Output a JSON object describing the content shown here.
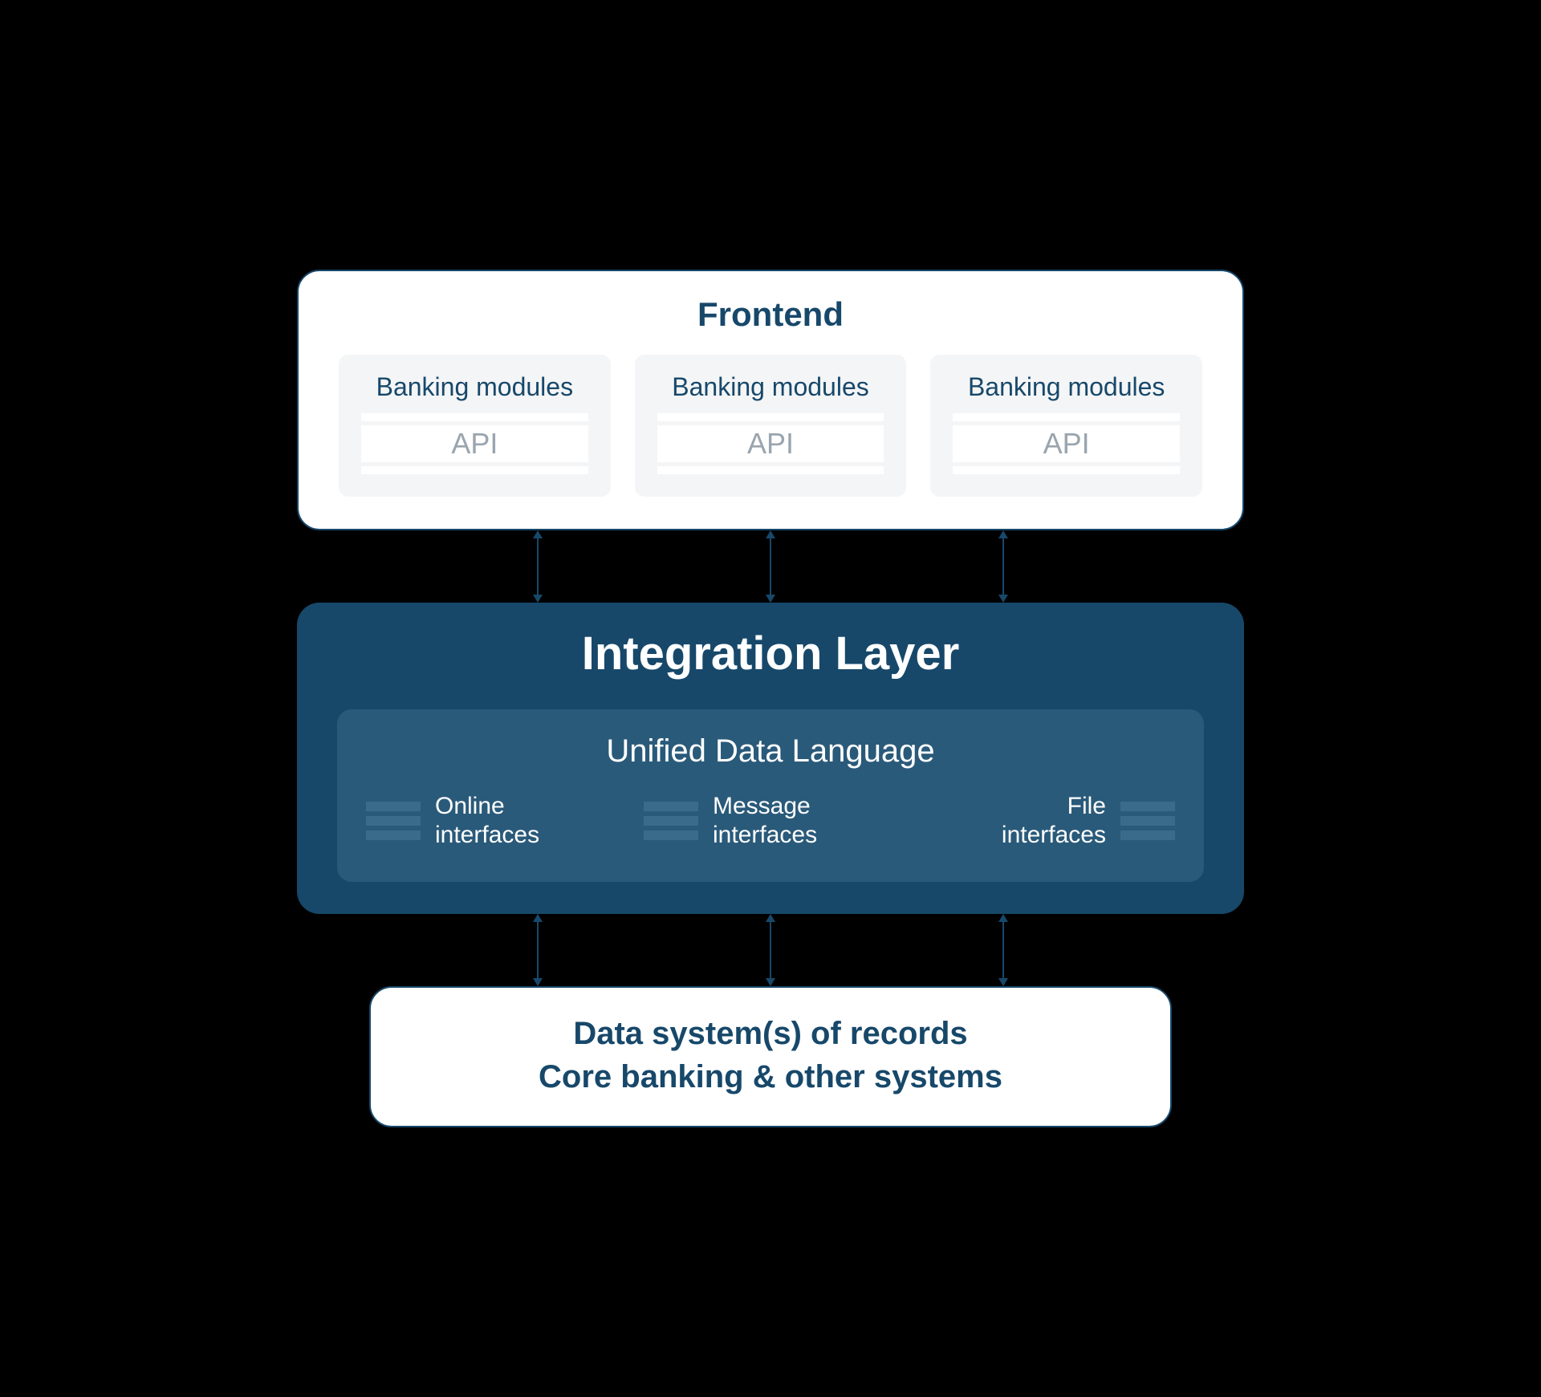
{
  "colors": {
    "page_bg": "#000000",
    "panel_white_bg": "#ffffff",
    "panel_border": "#17486a",
    "text_dark": "#17486a",
    "module_card_bg": "#f4f5f6",
    "api_bar": "#ffffff",
    "api_text": "#9aa5ae",
    "panel_dark_bg": "#17486a",
    "integration_text": "#ffffff",
    "udl_box_bg": "#2a5a7a",
    "udl_text": "#ffffff",
    "iface_bar": "#3a6b8b",
    "arrow": "#17486a"
  },
  "typography": {
    "frontend_title_size": 42,
    "module_title_size": 32,
    "api_label_size": 36,
    "integration_title_size": 58,
    "udl_title_size": 40,
    "iface_label_size": 30,
    "bottom_line_size": 40
  },
  "layout": {
    "panel_radius": 28,
    "card_radius": 12,
    "udl_radius": 18,
    "arrow_positions_pct": [
      21,
      50,
      79
    ]
  },
  "frontend": {
    "title": "Frontend",
    "modules": [
      {
        "title": "Banking modules",
        "api_label": "API"
      },
      {
        "title": "Banking modules",
        "api_label": "API"
      },
      {
        "title": "Banking modules",
        "api_label": "API"
      }
    ]
  },
  "integration": {
    "title": "Integration Layer",
    "udl_title": "Unified Data Language",
    "interfaces": [
      {
        "label_l1": "Online",
        "label_l2": "interfaces",
        "bars_side": "left"
      },
      {
        "label_l1": "Message",
        "label_l2": "interfaces",
        "bars_side": "left"
      },
      {
        "label_l1": "File",
        "label_l2": "interfaces",
        "bars_side": "right"
      }
    ]
  },
  "bottom": {
    "line1": "Data system(s) of records",
    "line2": "Core banking & other systems"
  }
}
